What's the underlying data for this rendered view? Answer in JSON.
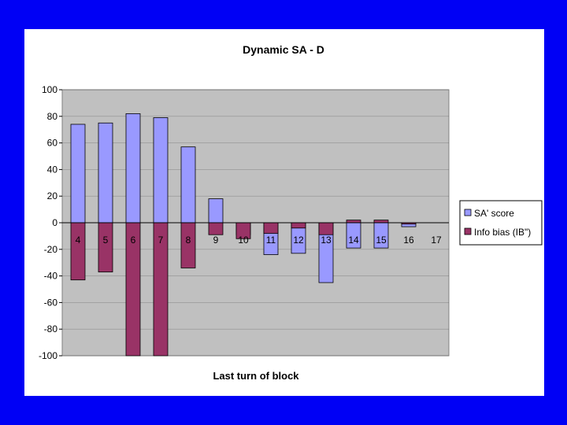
{
  "colors": {
    "slide_background": "#0000f5",
    "panel": "#ffffff",
    "plot_area": "#c0c0c0",
    "gridline": "#000000",
    "series_sa": "#9999ff",
    "series_ib": "#993366"
  },
  "chart_data": {
    "type": "bar",
    "title": "Dynamic SA - D",
    "xlabel": "Last turn of block",
    "ylabel": "",
    "ylim": [
      -100,
      100
    ],
    "yticks": [
      100,
      80,
      60,
      40,
      20,
      0,
      -20,
      -40,
      -60,
      -80,
      -100
    ],
    "categories": [
      "4",
      "5",
      "6",
      "7",
      "8",
      "9",
      "10",
      "11",
      "12",
      "13",
      "14",
      "15",
      "16",
      "17"
    ],
    "series": [
      {
        "name": "SA' score",
        "color": "#9999ff",
        "values": [
          74,
          75,
          82,
          79,
          57,
          18,
          -9,
          -24,
          -23,
          -45,
          -19,
          -19,
          -3,
          0
        ]
      },
      {
        "name": "Info bias (IB\")",
        "color": "#993366",
        "values": [
          -43,
          -37,
          -100,
          -100,
          -34,
          -9,
          -12,
          -8,
          -4,
          -9,
          2,
          2,
          -1,
          0
        ]
      }
    ],
    "grid": true,
    "legend_position": "right"
  }
}
